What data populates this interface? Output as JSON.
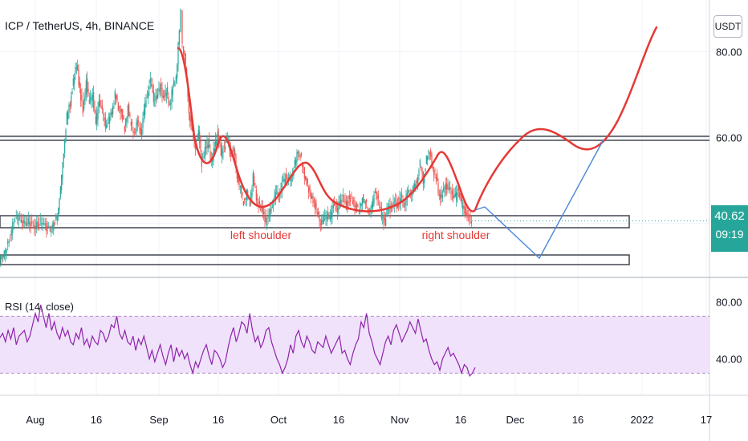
{
  "header": {
    "title": "ICP / TetherUS, 4h, BINANCE",
    "currency": "USDT"
  },
  "rsi": {
    "title": "RSI (14, close)"
  },
  "price_badge": {
    "price": "40.62",
    "countdown": "09:19"
  },
  "annotations": {
    "left": "left shoulder",
    "right": "right shoulder"
  },
  "colors": {
    "up": "#26a69a",
    "down": "#ef5350",
    "pattern": "#e53935",
    "projection": "#4a86d8",
    "rsi": "#8e24aa",
    "rsi_band": "#f0e2fb"
  },
  "chart_data": [
    {
      "type": "candlestick",
      "title": "ICP / TetherUS, 4h, BINANCE",
      "x_ticks": [
        "Aug",
        "16",
        "Sep",
        "16",
        "Oct",
        "16",
        "Nov",
        "16",
        "Dec",
        "16",
        "2022",
        "17"
      ],
      "y_ticks": [
        80.0,
        60.0,
        40.0
      ],
      "ylim": [
        28,
        92
      ],
      "last_price": 40.62,
      "price_path": [
        [
          0,
          31.5
        ],
        [
          6,
          33
        ],
        [
          12,
          36
        ],
        [
          18,
          41
        ],
        [
          24,
          41.5
        ],
        [
          30,
          39.5
        ],
        [
          36,
          40.5
        ],
        [
          42,
          39
        ],
        [
          48,
          40
        ],
        [
          54,
          40.5
        ],
        [
          60,
          38.5
        ],
        [
          66,
          39
        ],
        [
          72,
          42
        ],
        [
          76,
          48
        ],
        [
          80,
          57
        ],
        [
          84,
          65
        ],
        [
          88,
          68
        ],
        [
          92,
          73
        ],
        [
          96,
          77
        ],
        [
          100,
          71
        ],
        [
          104,
          66
        ],
        [
          108,
          73
        ],
        [
          112,
          68
        ],
        [
          116,
          70
        ],
        [
          120,
          63
        ],
        [
          124,
          69
        ],
        [
          128,
          66
        ],
        [
          132,
          63
        ],
        [
          136,
          64
        ],
        [
          140,
          66
        ],
        [
          144,
          70
        ],
        [
          148,
          67
        ],
        [
          152,
          66
        ],
        [
          156,
          62
        ],
        [
          160,
          67
        ],
        [
          164,
          63
        ],
        [
          168,
          61
        ],
        [
          172,
          64
        ],
        [
          176,
          61
        ],
        [
          180,
          66
        ],
        [
          184,
          70
        ],
        [
          188,
          73
        ],
        [
          192,
          69
        ],
        [
          196,
          69
        ],
        [
          200,
          72
        ],
        [
          204,
          69
        ],
        [
          208,
          71
        ],
        [
          212,
          67
        ],
        [
          216,
          72
        ],
        [
          220,
          74
        ],
        [
          224,
          85
        ],
        [
          226,
          89
        ],
        [
          228,
          82
        ],
        [
          232,
          77
        ],
        [
          236,
          66
        ],
        [
          240,
          61
        ],
        [
          244,
          58
        ],
        [
          248,
          61
        ],
        [
          252,
          54
        ],
        [
          256,
          57
        ],
        [
          260,
          59
        ],
        [
          264,
          54
        ],
        [
          268,
          58
        ],
        [
          272,
          61
        ],
        [
          276,
          56
        ],
        [
          280,
          58
        ],
        [
          284,
          60
        ],
        [
          288,
          56
        ],
        [
          292,
          57
        ],
        [
          296,
          51
        ],
        [
          300,
          48
        ],
        [
          304,
          45
        ],
        [
          308,
          47
        ],
        [
          312,
          45
        ],
        [
          316,
          51
        ],
        [
          320,
          46
        ],
        [
          324,
          44
        ],
        [
          328,
          43
        ],
        [
          332,
          40
        ],
        [
          336,
          42
        ],
        [
          340,
          44
        ],
        [
          344,
          47
        ],
        [
          348,
          46
        ],
        [
          352,
          49
        ],
        [
          356,
          51
        ],
        [
          360,
          50
        ],
        [
          364,
          51
        ],
        [
          368,
          54
        ],
        [
          372,
          57
        ],
        [
          376,
          55
        ],
        [
          380,
          51
        ],
        [
          384,
          49
        ],
        [
          388,
          46
        ],
        [
          392,
          45
        ],
        [
          396,
          42
        ],
        [
          400,
          40
        ],
        [
          404,
          41
        ],
        [
          408,
          42
        ],
        [
          412,
          41
        ],
        [
          416,
          45
        ],
        [
          420,
          43
        ],
        [
          424,
          45
        ],
        [
          428,
          46
        ],
        [
          432,
          44
        ],
        [
          436,
          46
        ],
        [
          440,
          45
        ],
        [
          444,
          44
        ],
        [
          448,
          43
        ],
        [
          452,
          46
        ],
        [
          456,
          45
        ],
        [
          460,
          43
        ],
        [
          464,
          44
        ],
        [
          468,
          48
        ],
        [
          472,
          45
        ],
        [
          476,
          42
        ],
        [
          480,
          40
        ],
        [
          484,
          44
        ],
        [
          488,
          43
        ],
        [
          492,
          45
        ],
        [
          496,
          44
        ],
        [
          500,
          46
        ],
        [
          504,
          44
        ],
        [
          508,
          47
        ],
        [
          512,
          47
        ],
        [
          516,
          48
        ],
        [
          520,
          50
        ],
        [
          524,
          54
        ],
        [
          528,
          50
        ],
        [
          532,
          55
        ],
        [
          536,
          57
        ],
        [
          540,
          52
        ],
        [
          544,
          51
        ],
        [
          548,
          46
        ],
        [
          552,
          47
        ],
        [
          556,
          49
        ],
        [
          560,
          48
        ],
        [
          564,
          47
        ],
        [
          568,
          46
        ],
        [
          572,
          48
        ],
        [
          576,
          44
        ],
        [
          580,
          43
        ],
        [
          584,
          41
        ],
        [
          588,
          40.62
        ]
      ]
    },
    {
      "type": "line",
      "title": "RSI (14, close)",
      "y_ticks": [
        80.0,
        40.0
      ],
      "band": [
        30,
        70
      ],
      "ylim": [
        15,
        95
      ],
      "series": [
        {
          "values": [
            55,
            58,
            52,
            60,
            54,
            62,
            50,
            56,
            58,
            60,
            52,
            56,
            64,
            72,
            66,
            78,
            70,
            62,
            72,
            60,
            66,
            58,
            54,
            62,
            56,
            60,
            52,
            50,
            58,
            54,
            62,
            50,
            54,
            48,
            56,
            52,
            50,
            60,
            58,
            52,
            56,
            64,
            62,
            70,
            58,
            54,
            60,
            52,
            50,
            56,
            46,
            54,
            50,
            56,
            48,
            40,
            46,
            38,
            44,
            50,
            42,
            36,
            44,
            50,
            38,
            48,
            42,
            46,
            40,
            44,
            36,
            30,
            38,
            34,
            40,
            46,
            50,
            42,
            36,
            46,
            44,
            40,
            34,
            38,
            48,
            56,
            62,
            52,
            58,
            66,
            64,
            58,
            72,
            60,
            52,
            56,
            48,
            52,
            60,
            62,
            52,
            46,
            40,
            36,
            30,
            34,
            40,
            50,
            44,
            56,
            60,
            52,
            48,
            56,
            52,
            46,
            44,
            52,
            50,
            48,
            56,
            50,
            44,
            48,
            52,
            56,
            44,
            46,
            40,
            36,
            44,
            50,
            54,
            66,
            62,
            72,
            58,
            52,
            44,
            40,
            36,
            44,
            52,
            56,
            50,
            60,
            64,
            58,
            52,
            56,
            60,
            66,
            62,
            58,
            68,
            60,
            52,
            54,
            46,
            40,
            36,
            38,
            32,
            40,
            44,
            48,
            42,
            44,
            40,
            36,
            30,
            36,
            34,
            28,
            30,
            34
          ]
        }
      ]
    }
  ]
}
